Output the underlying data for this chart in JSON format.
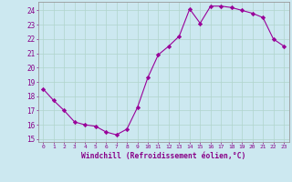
{
  "x": [
    0,
    1,
    2,
    3,
    4,
    5,
    6,
    7,
    8,
    9,
    10,
    11,
    12,
    13,
    14,
    15,
    16,
    17,
    18,
    19,
    20,
    21,
    22,
    23
  ],
  "y": [
    18.5,
    17.7,
    17.0,
    16.2,
    16.0,
    15.9,
    15.5,
    15.3,
    15.7,
    17.2,
    19.3,
    20.9,
    21.5,
    22.2,
    24.1,
    23.1,
    24.3,
    24.3,
    24.2,
    24.0,
    23.8,
    23.5,
    22.0,
    21.5
  ],
  "line_color": "#990099",
  "marker": "D",
  "marker_size": 2.2,
  "bg_color": "#cce8f0",
  "grid_color": "#b0d4cc",
  "xlabel": "Windchill (Refroidissement éolien,°C)",
  "xlabel_color": "#880088",
  "tick_color": "#880088",
  "ylim": [
    14.8,
    24.6
  ],
  "yticks": [
    15,
    16,
    17,
    18,
    19,
    20,
    21,
    22,
    23,
    24
  ],
  "xlim": [
    -0.5,
    23.5
  ],
  "xticks": [
    0,
    1,
    2,
    3,
    4,
    5,
    6,
    7,
    8,
    9,
    10,
    11,
    12,
    13,
    14,
    15,
    16,
    17,
    18,
    19,
    20,
    21,
    22,
    23
  ]
}
